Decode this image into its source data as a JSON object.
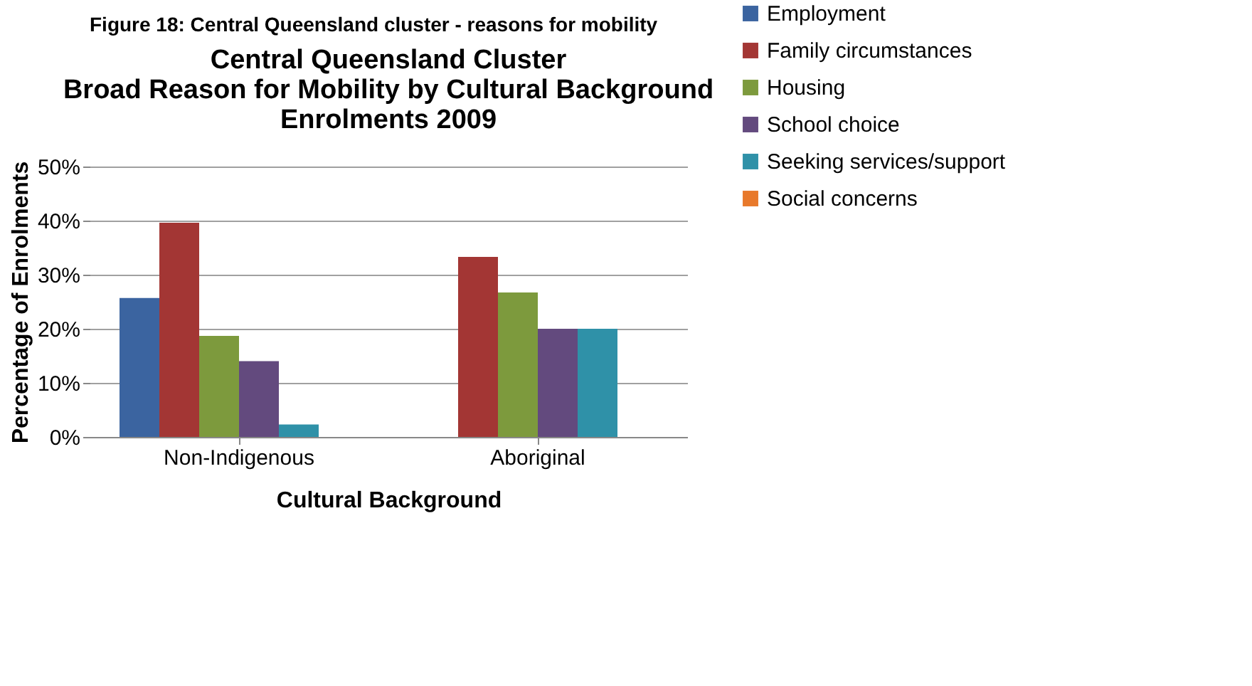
{
  "chart_data": {
    "type": "bar",
    "title": [
      "Central Queensland Cluster",
      "Broad Reason for Mobility by Cultural Background",
      "Enrolments 2009"
    ],
    "annotations": [
      "Figure 18: Central Queensland cluster - reasons for mobility"
    ],
    "xlabel": "Cultural Background",
    "ylabel": "Percentage of Enrolments",
    "categories": [
      "Non-Indigenous",
      "Aboriginal"
    ],
    "series": [
      {
        "name": "Employment",
        "color": "#3b64a0",
        "values": [
          25.7,
          0
        ]
      },
      {
        "name": "Family circumstances",
        "color": "#a33634",
        "values": [
          39.6,
          33.3
        ]
      },
      {
        "name": "Housing",
        "color": "#7d9a3d",
        "values": [
          18.7,
          26.7
        ]
      },
      {
        "name": "School choice",
        "color": "#634a7e",
        "values": [
          14.0,
          20.0
        ]
      },
      {
        "name": "Seeking services/support",
        "color": "#2f91a8",
        "values": [
          2.3,
          20.0
        ]
      },
      {
        "name": "Social concerns",
        "color": "#e8792b",
        "values": [
          0,
          0
        ]
      }
    ],
    "ylim": [
      0,
      50
    ],
    "yticks": [
      {
        "value": 0,
        "label": "0%"
      },
      {
        "value": 10,
        "label": "10%"
      },
      {
        "value": 20,
        "label": "20%"
      },
      {
        "value": 30,
        "label": "30%"
      },
      {
        "value": 40,
        "label": "40%"
      },
      {
        "value": 50,
        "label": "50%"
      }
    ],
    "grid": "y",
    "legend": "right"
  }
}
